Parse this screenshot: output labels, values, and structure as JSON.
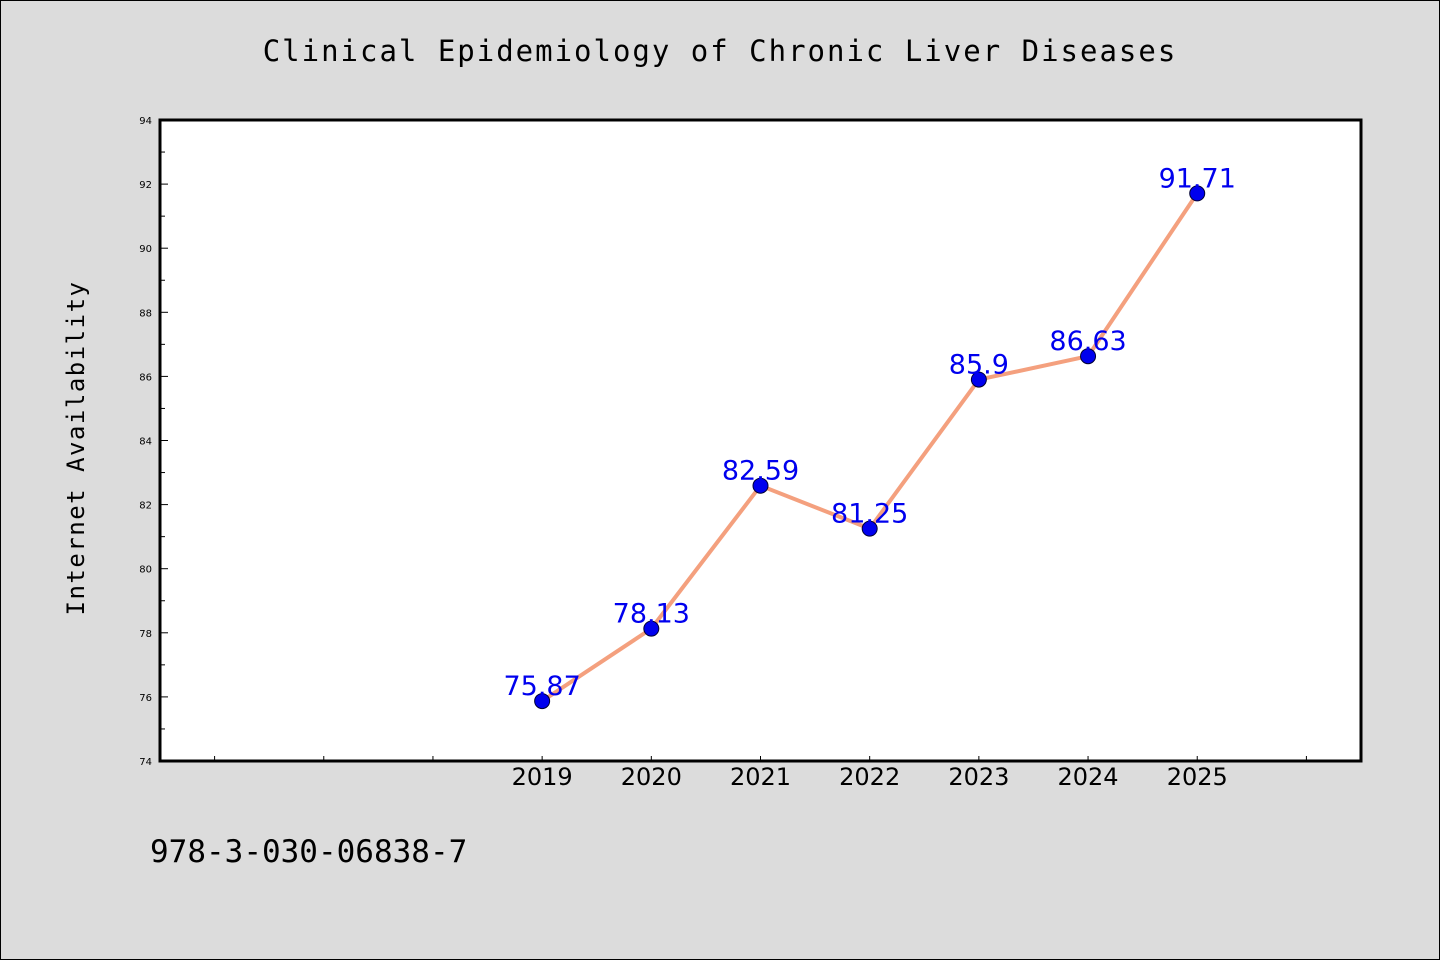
{
  "page": {
    "title": "Clinical Epidemiology of Chronic Liver Diseases",
    "footnote": "978-3-030-06838-7"
  },
  "chart_data": {
    "type": "line",
    "title": "Clinical Epidemiology of Chronic Liver Diseases",
    "xlabel": "",
    "ylabel": "Internet Availability",
    "categories": [
      "2019",
      "2020",
      "2021",
      "2022",
      "2023",
      "2024",
      "2025"
    ],
    "x_range": [
      2015.5,
      2026.5
    ],
    "ylim": [
      74,
      94
    ],
    "y_ticks": [
      74,
      76,
      78,
      80,
      82,
      84,
      86,
      88,
      90,
      92,
      94
    ],
    "grid": false,
    "legend": "none",
    "series": [
      {
        "x": [
          2019,
          2020,
          2021,
          2022,
          2023,
          2024,
          2025
        ],
        "values": [
          75.87,
          78.13,
          82.59,
          81.25,
          85.9,
          86.63,
          91.71
        ],
        "labels": [
          "75.87",
          "78.13",
          "82.59",
          "81.25",
          "85.9",
          "86.63",
          "91.71"
        ]
      }
    ],
    "colors": {
      "line": "#f4a07e",
      "marker": "#0000ee",
      "label": "#0000ee",
      "plot_background": "#ffffff",
      "page_background": "#dcdcdc"
    }
  }
}
